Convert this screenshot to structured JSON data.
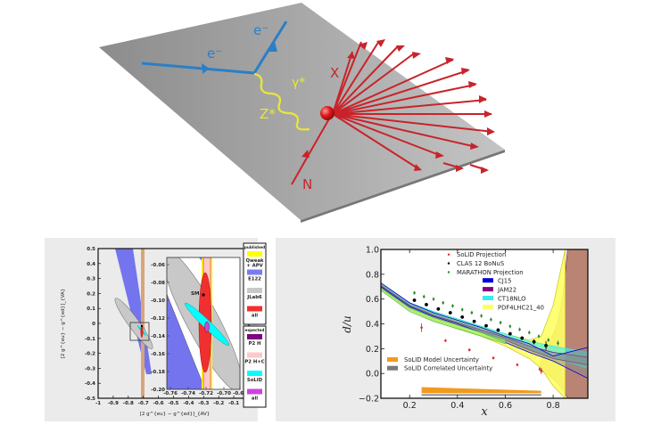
{
  "diagram": {
    "labels": {
      "electron_in": "e⁻",
      "electron_out": "e⁻",
      "gamma": "γ*",
      "zboson": "Z*",
      "nucleon": "N",
      "final_state": "X"
    },
    "colors": {
      "plane": "#a8a8a8",
      "electron": "#2a7fc6",
      "boson": "#e7e63a",
      "hadron": "#c9232a"
    }
  },
  "chart_data": [
    {
      "type": "contour",
      "title": "",
      "xlabel": "[2 g^{eu} − g^{ed}]_{AV}",
      "ylabel": "[2 g^{eu} − g^{ed}]_{VA}",
      "xlim": [
        -1,
        0
      ],
      "ylim": [
        -0.5,
        0.5
      ],
      "xticks": [
        "-1",
        "-0.9",
        "-0.8",
        "-0.7",
        "-0.6",
        "-0.5",
        "-0.4",
        "-0.3",
        "-0.2",
        "-0.1",
        "0"
      ],
      "yticks": [
        "0.5",
        "0.4",
        "0.3",
        "0.2",
        "0.1",
        "0",
        "-0.1",
        "-0.2",
        "-0.3",
        "-0.4",
        "-0.5"
      ],
      "inset": {
        "xlim": [
          -0.77,
          -0.68
        ],
        "ylim": [
          -0.2,
          -0.05
        ],
        "xticks": [
          "-0.76",
          "-0.74",
          "-0.72",
          "-0.70",
          "-0.68"
        ],
        "yticks": [
          "-0.06",
          "-0.08",
          "-0.10",
          "-0.12",
          "-0.14",
          "-0.16",
          "-0.18",
          "-0.20"
        ],
        "sm_label": "SM",
        "sm_point": [
          -0.718,
          -0.095
        ]
      },
      "legend": {
        "published": {
          "title": "published",
          "items": [
            {
              "label": "Qweak + APV",
              "color": "#ffff00"
            },
            {
              "label": "E122",
              "color": "#7b7bf0"
            },
            {
              "label": "JLab6",
              "color": "#c8c8c8"
            },
            {
              "label": "all",
              "color": "#f03030"
            }
          ]
        },
        "expected": {
          "title": "expected",
          "items": [
            {
              "label": "P2 H",
              "color": "#800080"
            },
            {
              "label": "P2 H+C",
              "color": "#ffc8c8"
            },
            {
              "label": "SoLID",
              "color": "#00ffff"
            },
            {
              "label": "all",
              "color": "#cc44dd"
            }
          ]
        }
      }
    },
    {
      "type": "line",
      "title": "",
      "xlabel": "x",
      "ylabel": "d/u",
      "xlim": [
        0.08,
        0.945
      ],
      "ylim": [
        -0.2,
        1.0
      ],
      "xticks": [
        "0.2",
        "0.4",
        "0.6",
        "0.8"
      ],
      "yticks": [
        "1.0",
        "0.8",
        "0.6",
        "0.4",
        "0.2",
        "0.0",
        "−0.2"
      ],
      "legend_position": "top-right",
      "series": [
        {
          "name": "SoLID Projection",
          "marker": "red-cross",
          "color": "#e8262b",
          "x": [
            0.25,
            0.35,
            0.45,
            0.55,
            0.65,
            0.75
          ],
          "y": [
            0.37,
            0.265,
            0.19,
            0.125,
            0.07,
            0.02
          ],
          "err": [
            0.035,
            0.012,
            0.012,
            0.012,
            0.012,
            0.025
          ]
        },
        {
          "name": "CLAS 12 BoNuS",
          "marker": "black-dot",
          "color": "#000000",
          "x": [
            0.22,
            0.27,
            0.32,
            0.37,
            0.42,
            0.47,
            0.52,
            0.57,
            0.62,
            0.67,
            0.72,
            0.77
          ],
          "y": [
            0.59,
            0.555,
            0.52,
            0.49,
            0.455,
            0.42,
            0.385,
            0.35,
            0.32,
            0.285,
            0.255,
            0.225
          ],
          "err": [
            0.012,
            0.012,
            0.012,
            0.012,
            0.012,
            0.012,
            0.012,
            0.012,
            0.012,
            0.015,
            0.02,
            0.035
          ]
        },
        {
          "name": "MARATHON Projection",
          "marker": "green-dot",
          "color": "#2e8b2e",
          "x": [
            0.22,
            0.26,
            0.3,
            0.34,
            0.38,
            0.42,
            0.46,
            0.5,
            0.54,
            0.58,
            0.62,
            0.66,
            0.7,
            0.74,
            0.78,
            0.82
          ],
          "y": [
            0.65,
            0.62,
            0.6,
            0.57,
            0.545,
            0.515,
            0.49,
            0.465,
            0.435,
            0.41,
            0.38,
            0.355,
            0.33,
            0.3,
            0.27,
            0.245
          ],
          "err": [
            0.015,
            0.015,
            0.015,
            0.015,
            0.015,
            0.015,
            0.015,
            0.015,
            0.015,
            0.015,
            0.015,
            0.015,
            0.015,
            0.015,
            0.015,
            0.02
          ]
        },
        {
          "name": "CJ15",
          "type": "band",
          "color": "#0000dd",
          "x": [
            0.08,
            0.2,
            0.3,
            0.4,
            0.5,
            0.6,
            0.7,
            0.8,
            0.945
          ],
          "lower": [
            0.7,
            0.54,
            0.46,
            0.4,
            0.33,
            0.25,
            0.17,
            0.1,
            -0.04
          ],
          "upper": [
            0.73,
            0.57,
            0.49,
            0.43,
            0.37,
            0.3,
            0.24,
            0.14,
            0.21
          ]
        },
        {
          "name": "JAM22",
          "type": "band",
          "color": "#800080",
          "x": [
            0.08,
            0.2,
            0.3,
            0.4,
            0.5,
            0.6,
            0.7,
            0.8,
            0.945
          ],
          "lower": [
            0.69,
            0.53,
            0.45,
            0.39,
            0.33,
            0.27,
            0.19,
            0.12,
            0.07
          ],
          "upper": [
            0.71,
            0.55,
            0.47,
            0.41,
            0.35,
            0.29,
            0.22,
            0.17,
            0.13
          ]
        },
        {
          "name": "CT18NLO",
          "type": "band",
          "color": "#33eeee",
          "x": [
            0.08,
            0.2,
            0.3,
            0.4,
            0.5,
            0.6,
            0.7,
            0.8,
            0.945
          ],
          "lower": [
            0.7,
            0.53,
            0.46,
            0.4,
            0.34,
            0.27,
            0.2,
            0.13,
            0.04
          ],
          "upper": [
            0.73,
            0.57,
            0.5,
            0.44,
            0.38,
            0.32,
            0.26,
            0.22,
            0.17
          ]
        },
        {
          "name": "PDF4LHC21_40",
          "type": "band",
          "color": "#ffff66",
          "x": [
            0.08,
            0.2,
            0.3,
            0.4,
            0.5,
            0.6,
            0.7,
            0.75,
            0.8,
            0.85
          ],
          "lower": [
            0.68,
            0.52,
            0.43,
            0.37,
            0.3,
            0.22,
            0.12,
            0.04,
            -0.1,
            -0.2
          ],
          "upper": [
            0.73,
            0.57,
            0.5,
            0.44,
            0.38,
            0.32,
            0.27,
            0.3,
            0.55,
            1.0
          ]
        },
        {
          "name": "SoLID Model Uncertainty",
          "type": "band",
          "color": "#f39a1e",
          "x": [
            0.25,
            0.75
          ],
          "lower": [
            -0.16,
            -0.16
          ],
          "upper": [
            -0.11,
            -0.14
          ]
        },
        {
          "name": "SoLID Correlated Uncertainty",
          "type": "band",
          "color": "#7a7a7a",
          "x": [
            0.25,
            0.75
          ],
          "lower": [
            -0.173,
            -0.173
          ],
          "upper": [
            -0.168,
            -0.168
          ]
        }
      ]
    }
  ]
}
